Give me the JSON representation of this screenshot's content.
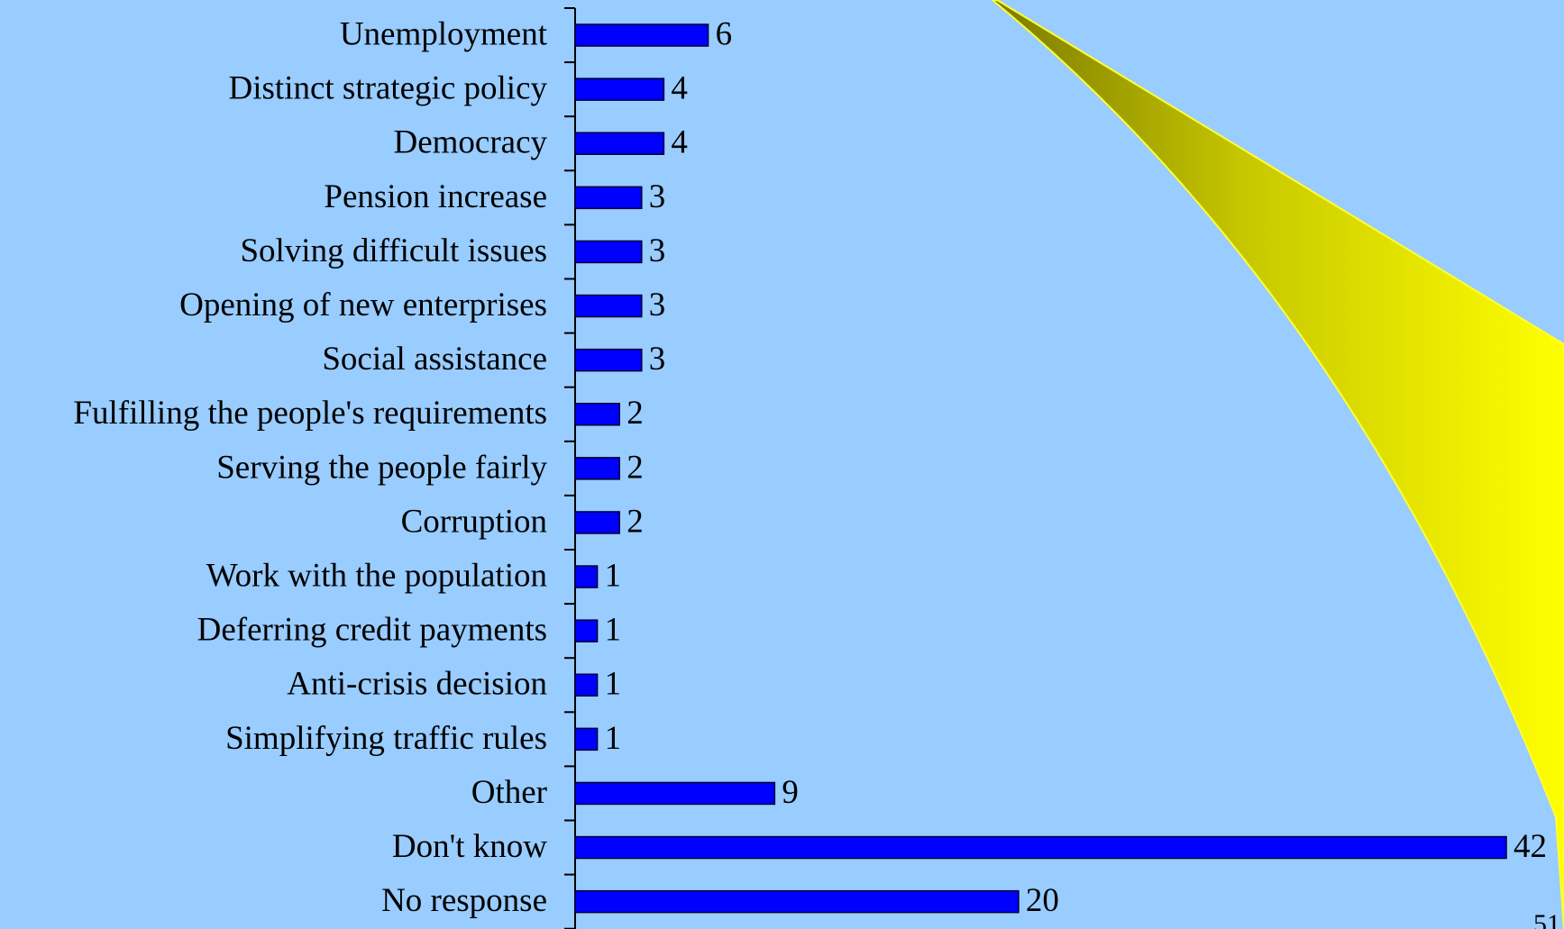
{
  "chart_data": {
    "type": "bar",
    "orientation": "horizontal",
    "categories": [
      "Unemployment",
      "Distinct strategic policy",
      "Democracy",
      "Pension increase",
      "Solving difficult issues",
      "Opening of new enterprises",
      "Social assistance",
      "Fulfilling the people's requirements",
      "Serving the people fairly",
      "Corruption",
      "Work with the population",
      "Deferring credit payments",
      "Anti-crisis decision",
      "Simplifying traffic rules",
      "Other",
      "Don't know",
      "No response"
    ],
    "values": [
      6,
      4,
      4,
      3,
      3,
      3,
      3,
      2,
      2,
      2,
      1,
      1,
      1,
      1,
      9,
      42,
      20
    ],
    "color": "#0000ff",
    "xlim": [
      0,
      42
    ]
  },
  "page_number": "51"
}
